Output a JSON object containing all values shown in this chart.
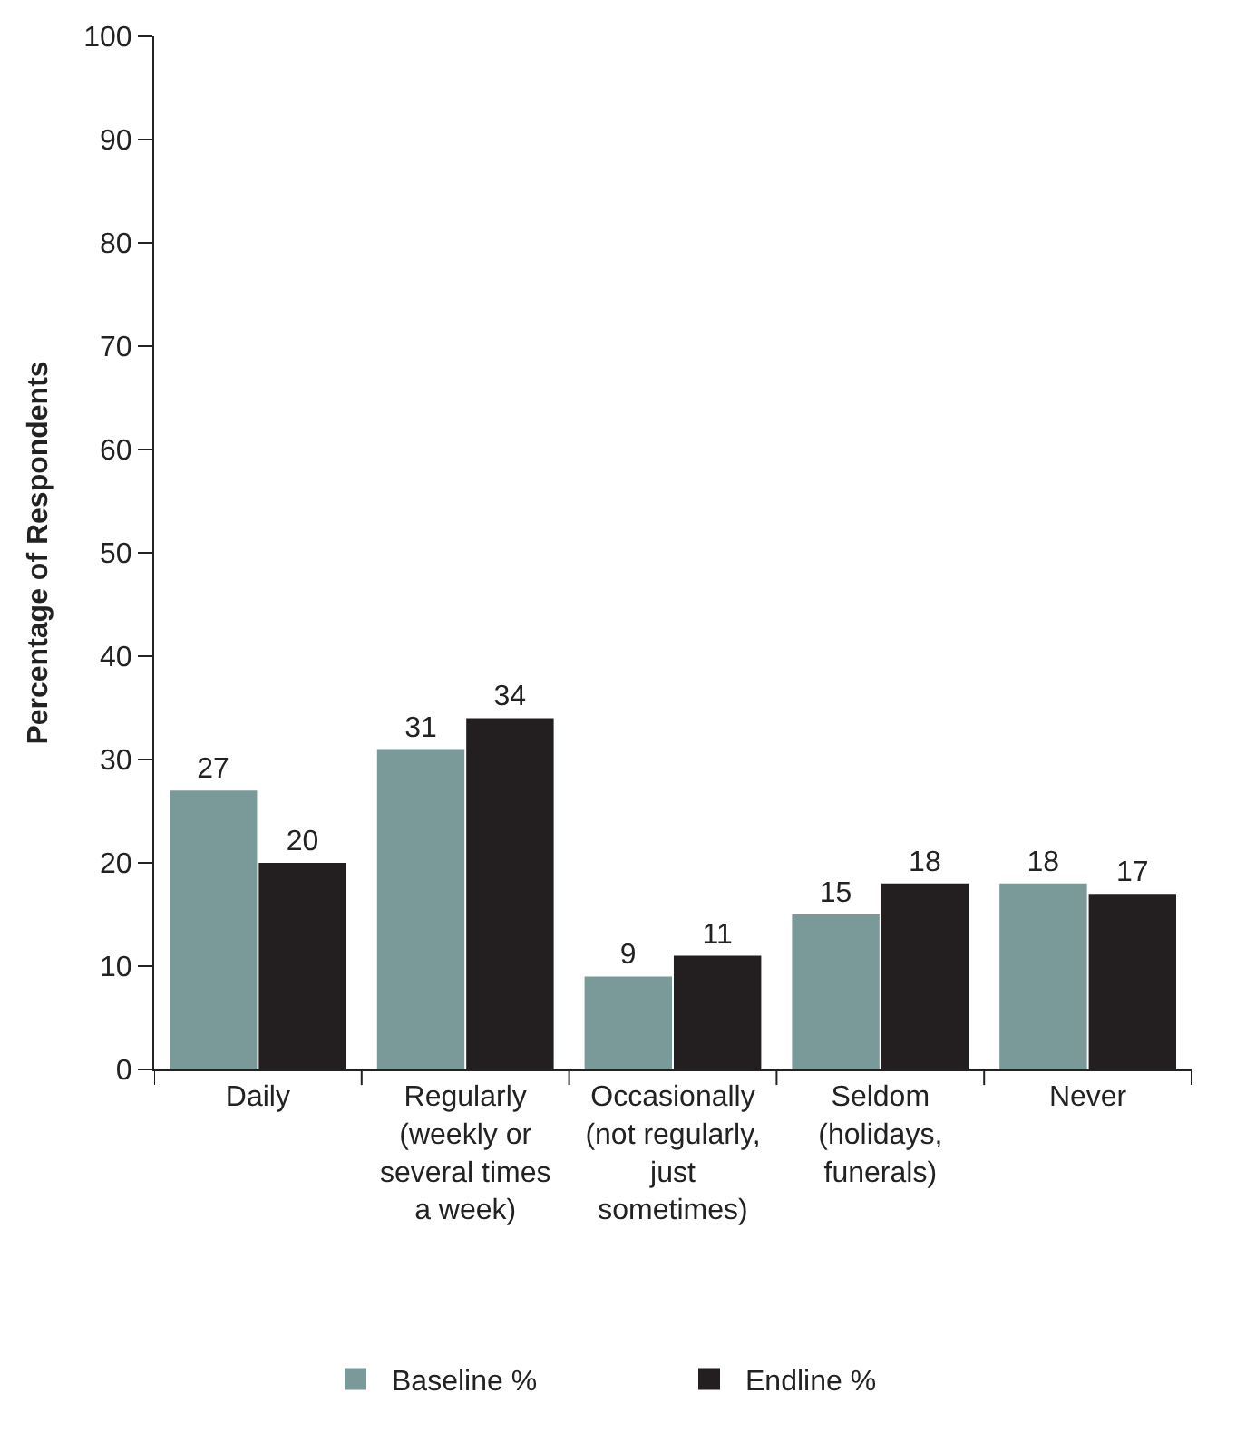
{
  "chart_data": {
    "type": "bar",
    "ylabel": "Percentage of Respondents",
    "categories": [
      "Daily",
      "Regularly\n(weekly or\nseveral times\na week)",
      "Occasionally\n(not regularly,\njust\nsometimes)",
      "Seldom\n(holidays,\nfunerals)",
      "Never"
    ],
    "series": [
      {
        "name": "Baseline %",
        "color": "#7a9a9a",
        "values": [
          27,
          31,
          9,
          15,
          18
        ]
      },
      {
        "name": "Endline %",
        "color": "#231f20",
        "values": [
          20,
          34,
          11,
          18,
          17
        ]
      }
    ],
    "ylim": [
      0,
      100
    ],
    "yticks": [
      0,
      10,
      20,
      30,
      40,
      50,
      60,
      70,
      80,
      90,
      100
    ],
    "data_labels": true,
    "legend": "bottom"
  }
}
